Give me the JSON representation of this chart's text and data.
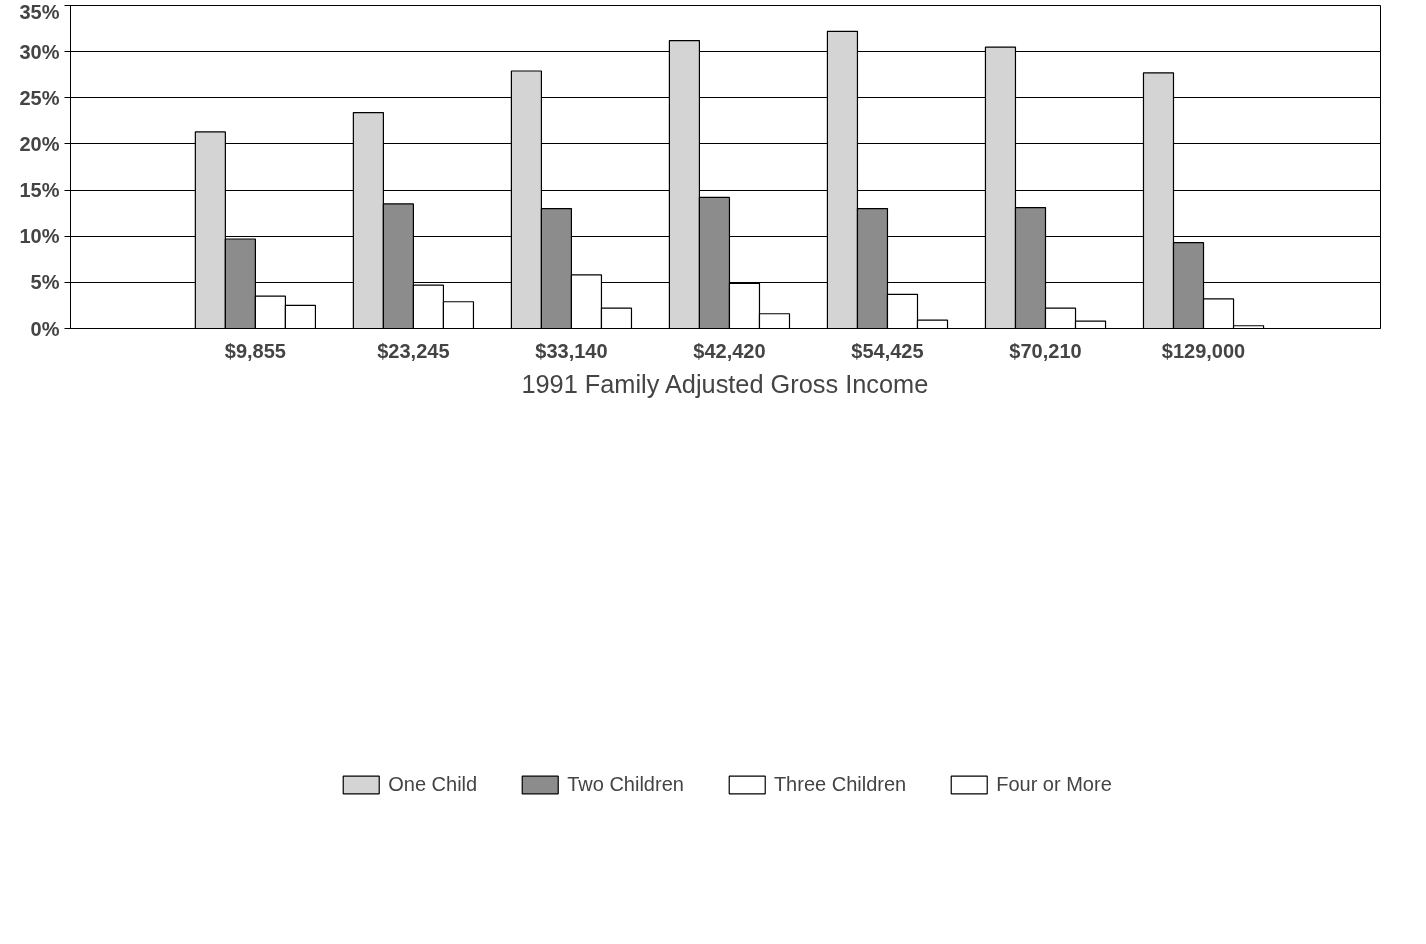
{
  "chart_data": {
    "type": "bar",
    "xlabel": "1991 Family Adjusted Gross Income",
    "categories": [
      "$9,855",
      "$23,245",
      "$33,140",
      "$42,420",
      "$54,425",
      "$70,210",
      "$129,000"
    ],
    "series": [
      {
        "name": "One Child",
        "color": "#d4d4d4",
        "values": [
          21.3,
          23.4,
          27.9,
          31.2,
          32.2,
          30.5,
          27.7
        ]
      },
      {
        "name": "Two Children",
        "color": "#8c8c8c",
        "values": [
          9.7,
          13.5,
          13.0,
          14.2,
          13.0,
          13.1,
          9.3
        ]
      },
      {
        "name": "Three Children",
        "color": "#ffffff",
        "values": [
          3.5,
          4.7,
          5.8,
          4.9,
          3.7,
          2.2,
          3.2
        ]
      },
      {
        "name": "Four or More",
        "color": "#ffffff",
        "values": [
          2.5,
          2.9,
          2.2,
          1.6,
          0.9,
          0.8,
          0.3
        ]
      }
    ],
    "ylim": [
      0,
      35
    ],
    "yticks": [
      {
        "value": 0,
        "label": "0%"
      },
      {
        "value": 5,
        "label": "5%"
      },
      {
        "value": 10,
        "label": "10%"
      },
      {
        "value": 15,
        "label": "15%"
      },
      {
        "value": 20,
        "label": "20%"
      },
      {
        "value": 25,
        "label": "25%"
      },
      {
        "value": 30,
        "label": "30%"
      },
      {
        "value": 35,
        "label": "35%"
      }
    ],
    "grid": "y",
    "legend": "bottom"
  }
}
